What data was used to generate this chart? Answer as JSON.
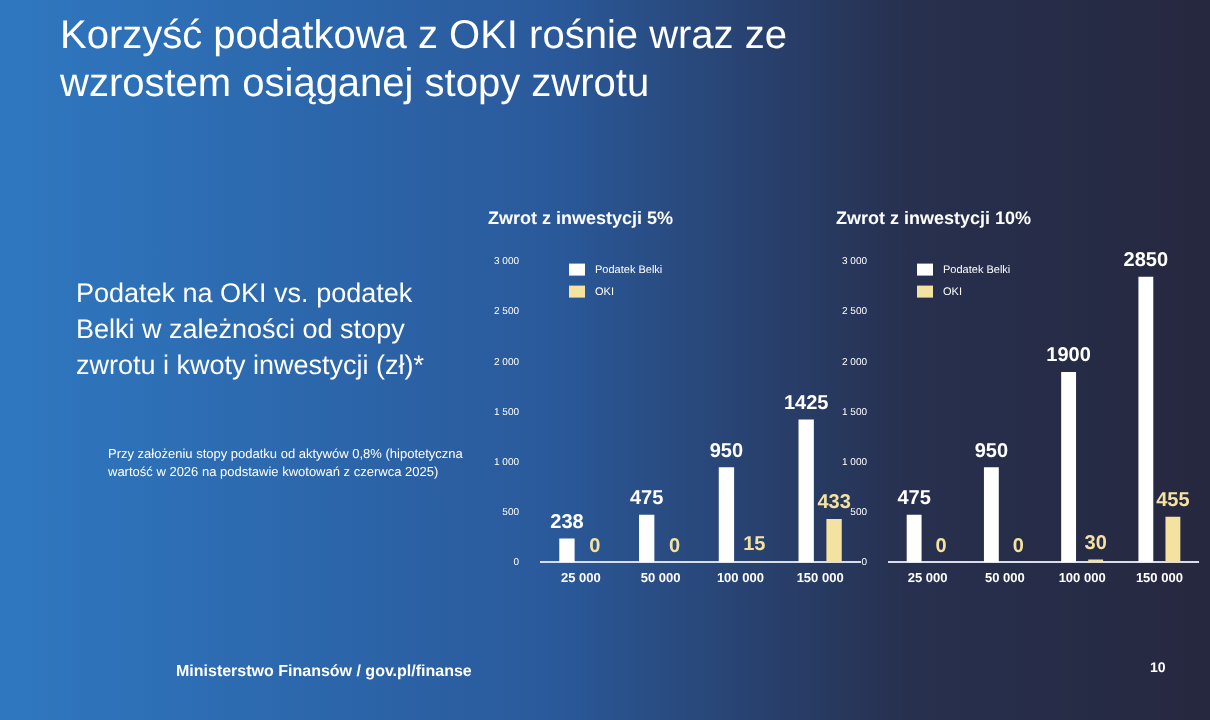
{
  "chart_data": [
    {
      "type": "other",
      "title": "Korzyść podatkowa z OKI rośnie wraz ze wzrostem osiąganej stopy zwrotu",
      "subtitle": "Podatek na OKI vs. podatek Belki w zależności od stopy zwrotu i kwoty inwestycji (zł)*",
      "annotations": [
        "Przy założeniu stopy podatku od aktywów 0,8% (hipotetyczna wartość w 2026 na podstawie kwotowań z czerwca 2025)",
        "Ministerstwo Finansów / gov.pl/finanse",
        "10"
      ]
    },
    {
      "type": "bar",
      "title": "Zwrot z inwestycji 5%",
      "categories": [
        "25 000",
        "50 000",
        "100 000",
        "150 000"
      ],
      "series": [
        {
          "name": "Podatek Belki",
          "color": "#ffffff",
          "values": [
            238,
            475,
            950,
            1425
          ]
        },
        {
          "name": "OKI",
          "color": "#f3e2a0",
          "values": [
            0,
            0,
            15,
            433
          ]
        }
      ],
      "ylim": [
        0,
        3000
      ],
      "yticks": [
        {
          "value": 0,
          "label": "0"
        },
        {
          "value": 500,
          "label": "500"
        },
        {
          "value": 1000,
          "label": "1 000"
        },
        {
          "value": 1500,
          "label": "1 500"
        },
        {
          "value": 2000,
          "label": "2 000"
        },
        {
          "value": 2500,
          "label": "2 500"
        },
        {
          "value": 3000,
          "label": "3 000"
        }
      ],
      "grid": false,
      "legend": "top left",
      "data_labels": true
    },
    {
      "type": "bar",
      "title": "Zwrot z inwestycji 10%",
      "categories": [
        "25 000",
        "50 000",
        "100 000",
        "150 000"
      ],
      "series": [
        {
          "name": "Podatek Belki",
          "color": "#ffffff",
          "values": [
            475,
            950,
            1900,
            2850
          ]
        },
        {
          "name": "OKI",
          "color": "#f3e2a0",
          "values": [
            0,
            0,
            30,
            455
          ]
        }
      ],
      "ylim": [
        0,
        3000
      ],
      "yticks": [
        {
          "value": 0,
          "label": "0"
        },
        {
          "value": 500,
          "label": "500"
        },
        {
          "value": 1000,
          "label": "1 000"
        },
        {
          "value": 1500,
          "label": "1 500"
        },
        {
          "value": 2000,
          "label": "2 000"
        },
        {
          "value": 2500,
          "label": "2 500"
        },
        {
          "value": 3000,
          "label": "3 000"
        }
      ],
      "grid": false,
      "legend": "top left",
      "data_labels": true
    }
  ]
}
